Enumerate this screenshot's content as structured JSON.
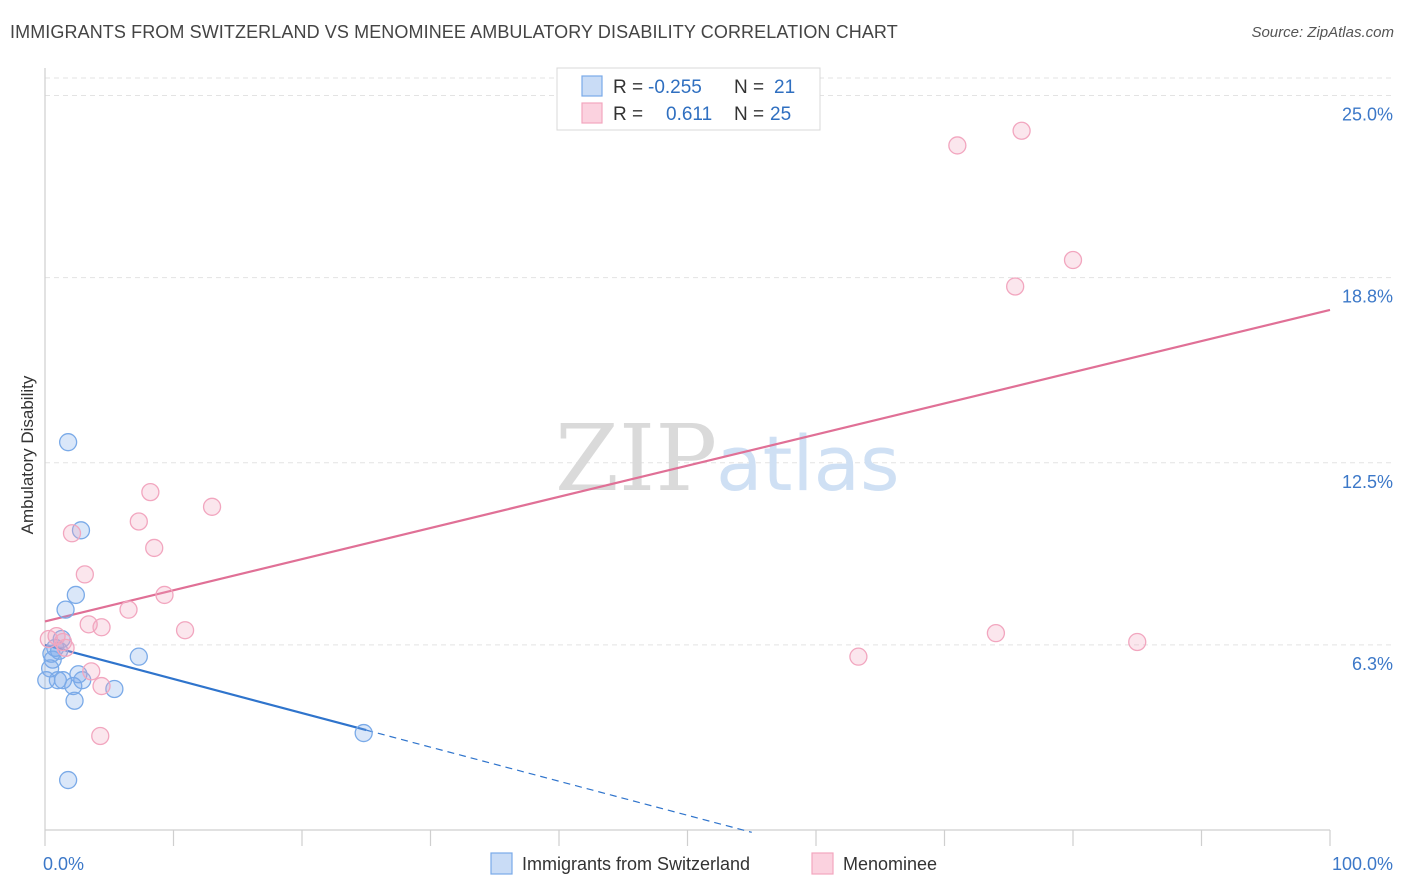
{
  "title": "IMMIGRANTS FROM SWITZERLAND VS MENOMINEE AMBULATORY DISABILITY CORRELATION CHART",
  "source": "Source: ZipAtlas.com",
  "watermark": {
    "zip": "ZIP",
    "atlas": "atlas"
  },
  "chart_data": {
    "type": "scatter",
    "ylabel": "Ambulatory Disability",
    "xlim": [
      0,
      100
    ],
    "ylim": [
      0,
      25.8
    ],
    "y_ticks": [
      6.3,
      12.5,
      18.8,
      25.0
    ],
    "y_tick_labels": [
      "6.3%",
      "12.5%",
      "18.8%",
      "25.0%"
    ],
    "x_tick_labels": {
      "min": "0.0%",
      "max": "100.0%"
    },
    "grid": true,
    "legend_stats": [
      {
        "r_label": "R =",
        "r_value": "-0.255",
        "n_label": "N =",
        "n_value": "21"
      },
      {
        "r_label": "R =",
        "r_value": "0.611",
        "n_label": "N =",
        "n_value": "25"
      }
    ],
    "series": [
      {
        "name": "Immigrants from Switzerland",
        "color": "#7aaae8",
        "line_color": "#2f74cc",
        "trend": {
          "x0": 0,
          "y0": 6.3,
          "x1": 25,
          "y1": 3.4,
          "dash_to_x": 55
        },
        "points": [
          [
            1.8,
            13.2
          ],
          [
            2.8,
            10.2
          ],
          [
            1.6,
            7.5
          ],
          [
            2.4,
            8.0
          ],
          [
            1.3,
            6.5
          ],
          [
            0.8,
            6.2
          ],
          [
            1.1,
            6.1
          ],
          [
            0.6,
            5.8
          ],
          [
            0.4,
            5.5
          ],
          [
            0.1,
            5.1
          ],
          [
            1.0,
            5.1
          ],
          [
            1.4,
            5.1
          ],
          [
            2.2,
            4.9
          ],
          [
            2.6,
            5.3
          ],
          [
            2.9,
            5.1
          ],
          [
            5.4,
            4.8
          ],
          [
            7.3,
            5.9
          ],
          [
            2.3,
            4.4
          ],
          [
            24.8,
            3.3
          ],
          [
            1.8,
            1.7
          ],
          [
            0.5,
            6.0
          ]
        ]
      },
      {
        "name": "Menominee",
        "color": "#f2a6bf",
        "line_color": "#e07096",
        "trend": {
          "x0": 0,
          "y0": 7.1,
          "x1": 100,
          "y1": 17.7
        },
        "points": [
          [
            71.0,
            23.3
          ],
          [
            76.0,
            23.8
          ],
          [
            80.0,
            19.4
          ],
          [
            75.5,
            18.5
          ],
          [
            8.2,
            11.5
          ],
          [
            13.0,
            11.0
          ],
          [
            7.3,
            10.5
          ],
          [
            8.5,
            9.6
          ],
          [
            2.1,
            10.1
          ],
          [
            3.1,
            8.7
          ],
          [
            9.3,
            8.0
          ],
          [
            6.5,
            7.5
          ],
          [
            3.4,
            7.0
          ],
          [
            4.4,
            6.9
          ],
          [
            10.9,
            6.8
          ],
          [
            0.9,
            6.6
          ],
          [
            1.4,
            6.4
          ],
          [
            1.6,
            6.2
          ],
          [
            3.6,
            5.4
          ],
          [
            4.4,
            4.9
          ],
          [
            4.3,
            3.2
          ],
          [
            63.3,
            5.9
          ],
          [
            74.0,
            6.7
          ],
          [
            85.0,
            6.4
          ],
          [
            0.3,
            6.5
          ]
        ]
      }
    ]
  }
}
